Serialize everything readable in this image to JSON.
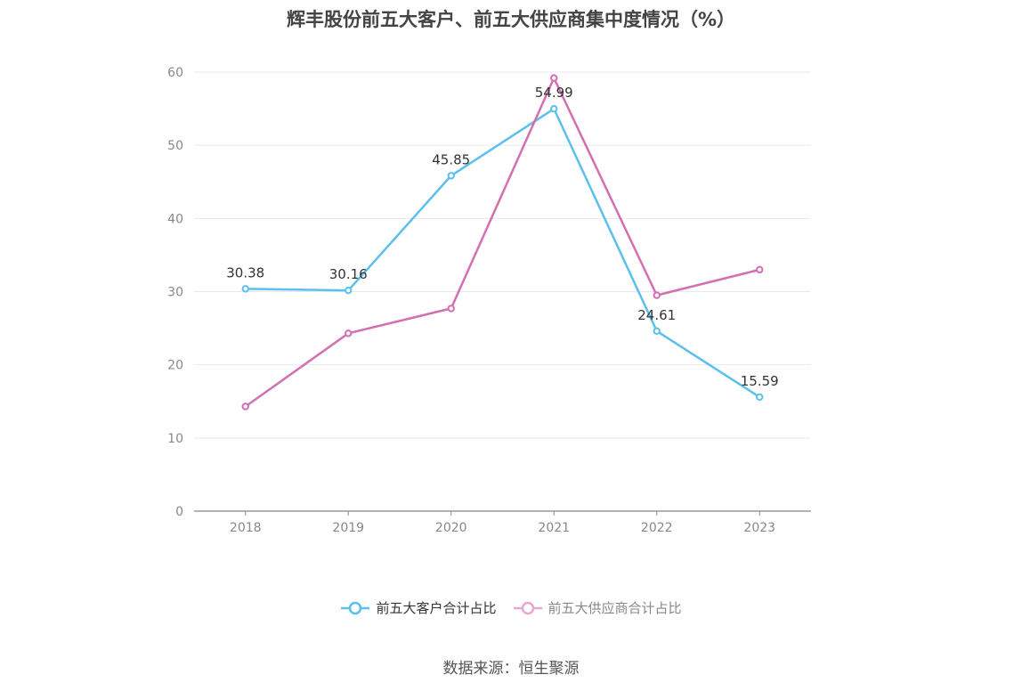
{
  "chart_data": {
    "type": "line",
    "title": "辉丰股份前五大客户、前五大供应商集中度情况（%）",
    "categories": [
      "2018",
      "2019",
      "2020",
      "2021",
      "2022",
      "2023"
    ],
    "ylim": [
      0,
      60
    ],
    "yticks": [
      0,
      10,
      20,
      30,
      40,
      50,
      60
    ],
    "grid": true,
    "legend_position": "bottom",
    "series": [
      {
        "name": "前五大客户合计占比",
        "values": [
          30.38,
          30.16,
          45.85,
          54.99,
          24.61,
          15.59
        ],
        "labels": [
          "30.38",
          "30.16",
          "45.85",
          "54.99",
          "24.61",
          "15.59"
        ],
        "color": "#5bc0eb"
      },
      {
        "name": "前五大供应商合计占比",
        "values": [
          14.3,
          24.3,
          27.7,
          59.2,
          29.5,
          33.0
        ],
        "color": "#d36fb0"
      }
    ]
  },
  "legend_colors": [
    "#5bc0eb",
    "#e9a8d2"
  ],
  "source": "数据来源：恒生聚源"
}
